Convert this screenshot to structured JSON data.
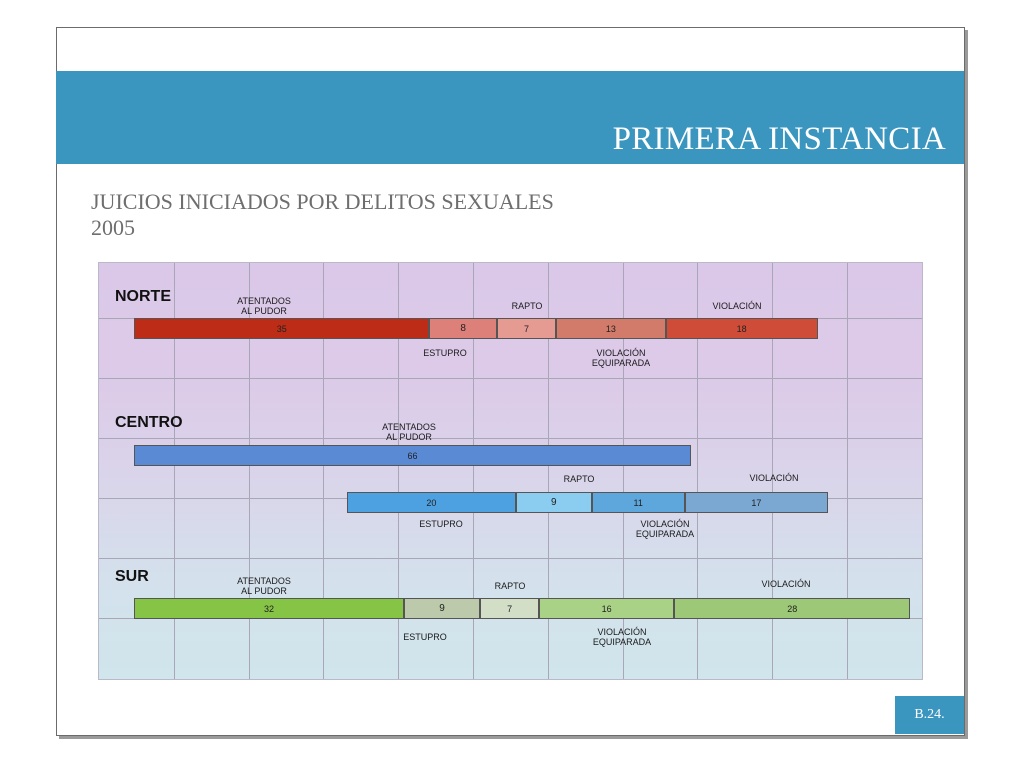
{
  "header": {
    "title": "PRIMERA INSTANCIA"
  },
  "subtitle": {
    "line1": "JUICIOS INICIADOS POR DELITOS SEXUALES",
    "line2": "2005"
  },
  "page_number": "B.24.",
  "chart_data": {
    "type": "bar",
    "orientation": "horizontal-stacked",
    "title": "",
    "regions": [
      {
        "name": "NORTE",
        "labels": {
          "atentados": "ATENTADOS\nAL PUDOR",
          "estupro": "ESTUPRO",
          "rapto": "RAPTO",
          "equiparada": "VIOLACIÓN\nEQUIPARADA",
          "violacion": "VIOLACIÓN"
        },
        "bars": [
          {
            "segments": [
              {
                "category": "ATENTADOS AL PUDOR",
                "value": 35,
                "color": "#bd2c17"
              },
              {
                "category": "ESTUPRO",
                "value": 8,
                "color": "#dd8079"
              },
              {
                "category": "RAPTO",
                "value": 7,
                "color": "#e69b92"
              },
              {
                "category": "VIOLACIÓN EQUIPARADA",
                "value": 13,
                "color": "#d27b6b"
              },
              {
                "category": "VIOLACIÓN",
                "value": 18,
                "color": "#cf4c38"
              }
            ]
          }
        ]
      },
      {
        "name": "CENTRO",
        "labels": {
          "atentados": "ATENTADOS\nAL PUDOR",
          "estupro": "ESTUPRO",
          "rapto": "RAPTO",
          "equiparada": "VIOLACIÓN\nEQUIPARADA",
          "violacion": "VIOLACIÓN"
        },
        "bars": [
          {
            "segments": [
              {
                "category": "ATENTADOS AL PUDOR",
                "value": 66,
                "color": "#5b8ad5"
              }
            ]
          },
          {
            "segments": [
              {
                "category": "ESTUPRO",
                "value": 20,
                "color": "#4ea1e0"
              },
              {
                "category": "RAPTO",
                "value": 9,
                "color": "#8bcdf0"
              },
              {
                "category": "VIOLACIÓN EQUIPARADA",
                "value": 11,
                "color": "#5ea7dd"
              },
              {
                "category": "VIOLACIÓN",
                "value": 17,
                "color": "#7aa8d2"
              }
            ]
          }
        ]
      },
      {
        "name": "SUR",
        "labels": {
          "atentados": "ATENTADOS\nAL PUDOR",
          "estupro": "ESTUPRO",
          "rapto": "RAPTO",
          "equiparada": "VIOLACIÓN\nEQUIPARADA",
          "violacion": "VIOLACIÓN"
        },
        "bars": [
          {
            "segments": [
              {
                "category": "ATENTADOS AL PUDOR",
                "value": 32,
                "color": "#86c446"
              },
              {
                "category": "ESTUPRO",
                "value": 9,
                "color": "#bccaab"
              },
              {
                "category": "RAPTO",
                "value": 7,
                "color": "#d2dec6"
              },
              {
                "category": "VIOLACIÓN EQUIPARADA",
                "value": 16,
                "color": "#aad287"
              },
              {
                "category": "VIOLACIÓN",
                "value": 28,
                "color": "#9cc877"
              }
            ]
          }
        ]
      }
    ],
    "grid": true,
    "legend": "none"
  }
}
